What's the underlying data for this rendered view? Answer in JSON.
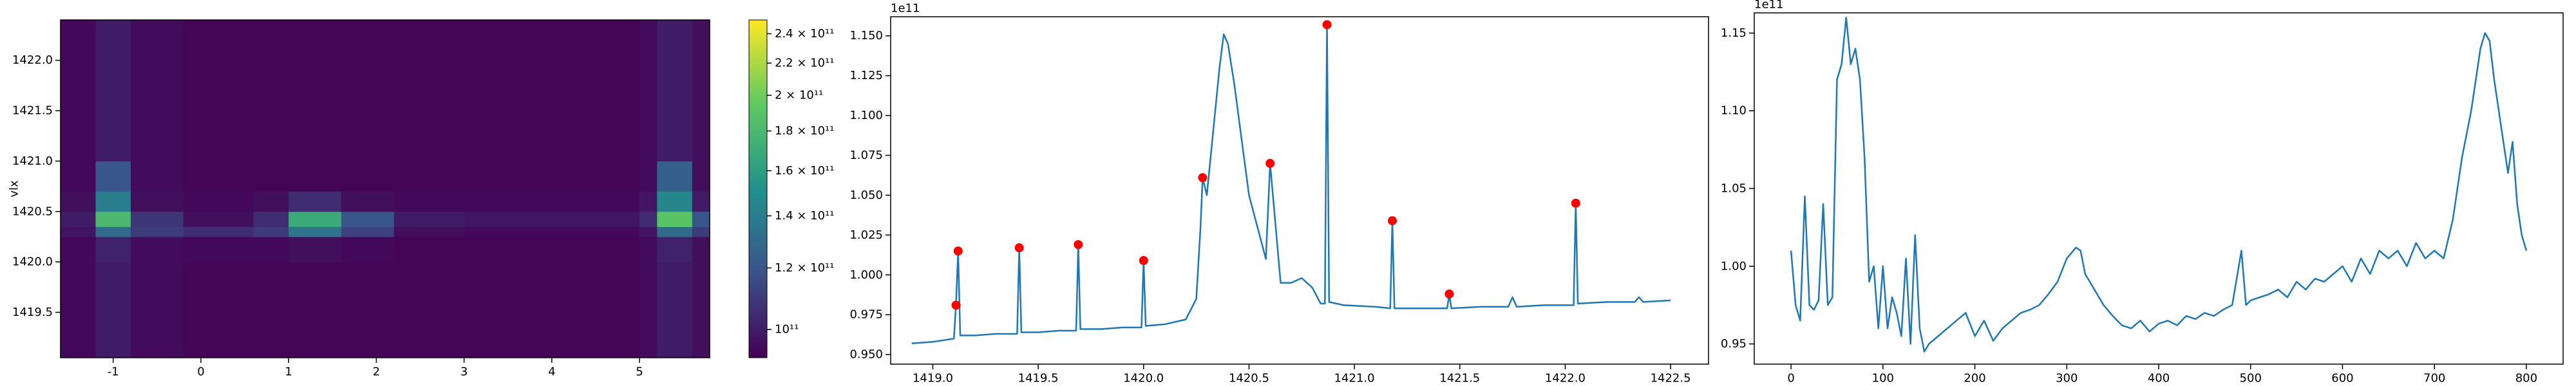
{
  "chart_data": [
    {
      "type": "heatmap",
      "ylabel": "vlx",
      "x_edges": [
        -1.6,
        -1.2,
        -0.8,
        -0.2,
        0.6,
        1.0,
        1.6,
        2.2,
        3.0,
        4.0,
        5.0,
        5.2,
        5.6,
        5.8
      ],
      "y_edges": [
        1419.05,
        1420.0,
        1420.25,
        1420.35,
        1420.5,
        1420.7,
        1421.0,
        1422.4
      ],
      "values": [
        [
          94000000000.0,
          100000000000.0,
          95000000000.0,
          93000000000.0,
          93000000000.0,
          93000000000.0,
          93000000000.0,
          93000000000.0,
          93000000000.0,
          93000000000.0,
          95000000000.0,
          100000000000.0,
          96000000000.0
        ],
        [
          94000000000.0,
          102000000000.0,
          95000000000.0,
          94000000000.0,
          94000000000.0,
          96000000000.0,
          94000000000.0,
          93000000000.0,
          93000000000.0,
          93000000000.0,
          95000000000.0,
          102000000000.0,
          96000000000.0
        ],
        [
          98000000000.0,
          130000000000.0,
          110000000000.0,
          105000000000.0,
          110000000000.0,
          135000000000.0,
          112000000000.0,
          96000000000.0,
          94000000000.0,
          94000000000.0,
          98000000000.0,
          130000000000.0,
          110000000000.0
        ],
        [
          100000000000.0,
          180000000000.0,
          108000000000.0,
          96000000000.0,
          105000000000.0,
          170000000000.0,
          120000000000.0,
          100000000000.0,
          98000000000.0,
          98000000000.0,
          105000000000.0,
          190000000000.0,
          120000000000.0
        ],
        [
          96000000000.0,
          140000000000.0,
          96000000000.0,
          94000000000.0,
          96000000000.0,
          105000000000.0,
          96000000000.0,
          94000000000.0,
          94000000000.0,
          94000000000.0,
          98000000000.0,
          145000000000.0,
          100000000000.0
        ],
        [
          94000000000.0,
          120000000000.0,
          95000000000.0,
          93000000000.0,
          93000000000.0,
          93000000000.0,
          93000000000.0,
          93000000000.0,
          93000000000.0,
          93000000000.0,
          95000000000.0,
          125000000000.0,
          96000000000.0
        ],
        [
          94000000000.0,
          100000000000.0,
          95000000000.0,
          93000000000.0,
          93000000000.0,
          93000000000.0,
          93000000000.0,
          93000000000.0,
          93000000000.0,
          93000000000.0,
          95000000000.0,
          100000000000.0,
          96000000000.0
        ]
      ],
      "xlim": [
        -1.6,
        5.8
      ],
      "xticks": [
        -1,
        0,
        1,
        2,
        3,
        4,
        5
      ],
      "ylim": [
        1419.05,
        1422.4
      ],
      "yticks": [
        1419.5,
        {
          "value": 1420,
          "label": "1420.0"
        },
        1420.5,
        {
          "value": 1421,
          "label": "1421.0"
        },
        1421.5,
        {
          "value": 1422,
          "label": "1422.0"
        }
      ],
      "colorbar": {
        "colormap": "viridis",
        "scale": "log",
        "lim": [
          92000000000.0,
          250000000000.0
        ],
        "ticks": [
          {
            "value": 100000000000.0,
            "label": "10¹¹"
          },
          {
            "value": 120000000000.0,
            "label": "1.2 × 10¹¹"
          },
          {
            "value": 140000000000.0,
            "label": "1.4 × 10¹¹"
          },
          {
            "value": 160000000000.0,
            "label": "1.6 × 10¹¹"
          },
          {
            "value": 180000000000.0,
            "label": "1.8 × 10¹¹"
          },
          {
            "value": 200000000000.0,
            "label": "2 × 10¹¹"
          },
          {
            "value": 220000000000.0,
            "label": "2.2 × 10¹¹"
          },
          {
            "value": 240000000000.0,
            "label": "2.4 × 10¹¹"
          }
        ]
      }
    },
    {
      "type": "line",
      "y_offset_label": "1e11",
      "xlim": [
        1418.8,
        1422.68
      ],
      "xticks": [
        {
          "value": 1419,
          "label": "1419.0"
        },
        1419.5,
        {
          "value": 1420,
          "label": "1420.0"
        },
        1420.5,
        {
          "value": 1421,
          "label": "1421.0"
        },
        1421.5,
        {
          "value": 1422,
          "label": "1422.0"
        },
        1422.5
      ],
      "ylim": [
        0.944,
        1.162
      ],
      "yticks": [
        {
          "value": 0.95,
          "label": "0.950"
        },
        0.975,
        {
          "value": 1,
          "label": "1.000"
        },
        1.025,
        {
          "value": 1.05,
          "label": "1.050"
        },
        1.075,
        {
          "value": 1.1,
          "label": "1.100"
        },
        1.125,
        {
          "value": 1.15,
          "label": "1.150"
        }
      ],
      "series": [
        {
          "mode": "line",
          "color": "#1f77b4",
          "x": [
            1418.9,
            1419.0,
            1419.1,
            1419.11,
            1419.12,
            1419.13,
            1419.2,
            1419.3,
            1419.4,
            1419.41,
            1419.42,
            1419.5,
            1419.6,
            1419.68,
            1419.69,
            1419.7,
            1419.8,
            1419.9,
            1419.99,
            1420.0,
            1420.01,
            1420.1,
            1420.2,
            1420.25,
            1420.27,
            1420.28,
            1420.3,
            1420.33,
            1420.36,
            1420.38,
            1420.4,
            1420.43,
            1420.47,
            1420.5,
            1420.55,
            1420.58,
            1420.59,
            1420.6,
            1420.65,
            1420.7,
            1420.75,
            1420.8,
            1420.84,
            1420.86,
            1420.87,
            1420.88,
            1420.95,
            1421.1,
            1421.17,
            1421.18,
            1421.19,
            1421.3,
            1421.44,
            1421.45,
            1421.46,
            1421.6,
            1421.73,
            1421.75,
            1421.77,
            1421.9,
            1422.04,
            1422.05,
            1422.06,
            1422.2,
            1422.33,
            1422.35,
            1422.37,
            1422.5
          ],
          "values": [
            0.957,
            0.958,
            0.96,
            0.981,
            1.015,
            0.962,
            0.962,
            0.963,
            0.963,
            1.017,
            0.964,
            0.964,
            0.965,
            0.965,
            1.019,
            0.966,
            0.966,
            0.967,
            0.967,
            1.009,
            0.968,
            0.969,
            0.972,
            0.985,
            1.03,
            1.061,
            1.05,
            1.09,
            1.13,
            1.151,
            1.145,
            1.12,
            1.08,
            1.05,
            1.025,
            1.01,
            1.04,
            1.07,
            0.995,
            0.995,
            0.998,
            0.992,
            0.982,
            0.982,
            1.157,
            0.983,
            0.981,
            0.98,
            0.979,
            1.034,
            0.979,
            0.979,
            0.979,
            0.988,
            0.979,
            0.98,
            0.98,
            0.986,
            0.98,
            0.981,
            0.981,
            1.045,
            0.982,
            0.983,
            0.983,
            0.986,
            0.983,
            0.984
          ]
        },
        {
          "mode": "markers",
          "color": "red",
          "x": [
            1419.11,
            1419.12,
            1419.41,
            1419.69,
            1420.0,
            1420.28,
            1420.6,
            1420.87,
            1421.18,
            1421.45,
            1422.05
          ],
          "values": [
            0.981,
            1.015,
            1.017,
            1.019,
            1.009,
            1.061,
            1.07,
            1.157,
            1.034,
            0.988,
            1.045
          ]
        }
      ]
    },
    {
      "type": "line",
      "y_offset_label": "1e11",
      "xlim": [
        -40,
        840
      ],
      "xticks": [
        0,
        100,
        200,
        300,
        400,
        500,
        600,
        700,
        800
      ],
      "ylim": [
        0.937,
        1.163
      ],
      "yticks": [
        0.95,
        {
          "value": 1,
          "label": "1.00"
        },
        1.05,
        {
          "value": 1.1,
          "label": "1.10"
        },
        1.15
      ],
      "series": [
        {
          "mode": "line",
          "color": "#1f77b4",
          "x": [
            0,
            5,
            10,
            15,
            20,
            25,
            30,
            35,
            40,
            45,
            50,
            55,
            60,
            65,
            70,
            75,
            80,
            85,
            90,
            95,
            100,
            105,
            110,
            115,
            120,
            125,
            130,
            135,
            140,
            145,
            150,
            160,
            170,
            180,
            190,
            200,
            210,
            220,
            230,
            240,
            250,
            260,
            270,
            280,
            290,
            300,
            310,
            315,
            320,
            330,
            340,
            350,
            360,
            370,
            380,
            390,
            400,
            410,
            420,
            430,
            440,
            450,
            460,
            470,
            480,
            490,
            495,
            500,
            510,
            520,
            530,
            540,
            550,
            560,
            570,
            580,
            590,
            600,
            610,
            620,
            630,
            640,
            650,
            660,
            670,
            680,
            690,
            700,
            710,
            720,
            730,
            740,
            750,
            755,
            760,
            765,
            770,
            780,
            785,
            790,
            795,
            800
          ],
          "values": [
            1.01,
            0.975,
            0.965,
            1.045,
            0.975,
            0.972,
            0.978,
            1.04,
            0.975,
            0.98,
            1.12,
            1.13,
            1.16,
            1.13,
            1.14,
            1.12,
            1.07,
            0.99,
            1.0,
            0.96,
            1.0,
            0.96,
            0.98,
            0.97,
            0.955,
            1.005,
            0.95,
            1.02,
            0.96,
            0.945,
            0.95,
            0.955,
            0.96,
            0.965,
            0.97,
            0.955,
            0.965,
            0.952,
            0.96,
            0.965,
            0.97,
            0.972,
            0.975,
            0.982,
            0.99,
            1.005,
            1.012,
            1.01,
            0.995,
            0.985,
            0.975,
            0.968,
            0.962,
            0.96,
            0.965,
            0.958,
            0.963,
            0.965,
            0.962,
            0.968,
            0.966,
            0.97,
            0.968,
            0.972,
            0.975,
            1.01,
            0.975,
            0.978,
            0.98,
            0.982,
            0.985,
            0.98,
            0.99,
            0.985,
            0.992,
            0.99,
            0.995,
            1.0,
            0.99,
            1.005,
            0.995,
            1.01,
            1.005,
            1.01,
            1.0,
            1.015,
            1.005,
            1.01,
            1.005,
            1.03,
            1.07,
            1.1,
            1.14,
            1.15,
            1.145,
            1.12,
            1.1,
            1.06,
            1.08,
            1.04,
            1.02,
            1.01
          ]
        }
      ]
    }
  ]
}
